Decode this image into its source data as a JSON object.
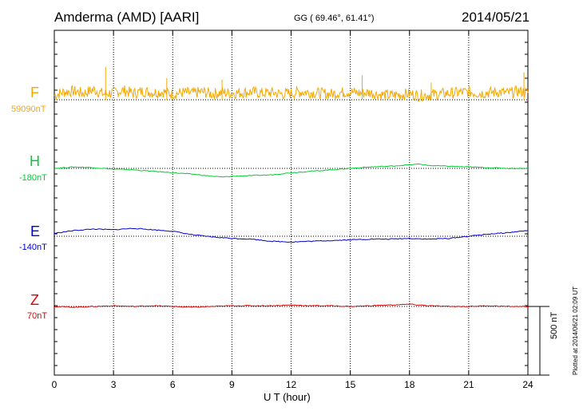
{
  "header": {
    "station": "Amderma (AMD)  [AARI]",
    "coords": "GG ( 69.46°,  61.41°)",
    "date": "2014/05/21"
  },
  "footer": {
    "plotted": "Plotted at 2014/06/21 02:09 UT"
  },
  "chart_data": {
    "type": "line",
    "xlabel": "U T (hour)",
    "xlim": [
      0,
      24
    ],
    "xticks": [
      0,
      3,
      6,
      9,
      12,
      15,
      18,
      21,
      24
    ],
    "scale_bar": "500 nT",
    "grid": true,
    "series": [
      {
        "name": "F",
        "baseline": "59090nT",
        "color": "#f5a800",
        "x": [
          0,
          0.5,
          1,
          1.5,
          2,
          2.5,
          3,
          3.5,
          4,
          4.5,
          5,
          5.5,
          6,
          6.5,
          7,
          7.5,
          8,
          8.5,
          9,
          9.5,
          10,
          10.5,
          11,
          11.5,
          12,
          12.5,
          13,
          13.5,
          14,
          14.5,
          15,
          15.5,
          16,
          16.5,
          17,
          17.5,
          18,
          18.5,
          19,
          19.5,
          20,
          20.5,
          21,
          21.5,
          22,
          22.5,
          23,
          23.5,
          24
        ],
        "values": [
          30,
          55,
          60,
          45,
          70,
          40,
          50,
          65,
          45,
          60,
          50,
          55,
          40,
          50,
          45,
          55,
          40,
          50,
          45,
          50,
          55,
          45,
          50,
          40,
          45,
          55,
          50,
          45,
          40,
          50,
          55,
          45,
          50,
          35,
          30,
          35,
          40,
          30,
          35,
          40,
          45,
          50,
          55,
          45,
          50,
          55,
          45,
          60,
          50
        ],
        "spikes": [
          [
            2.6,
            230
          ],
          [
            5.7,
            150
          ],
          [
            8.5,
            140
          ],
          [
            15.6,
            170
          ],
          [
            19.1,
            120
          ],
          [
            23.8,
            190
          ]
        ]
      },
      {
        "name": "H",
        "baseline": "-180nT",
        "color": "#00cc33",
        "x": [
          0,
          1,
          2,
          3,
          4,
          5,
          6,
          7,
          8,
          8.5,
          9,
          10,
          11,
          12,
          13,
          14,
          15,
          16,
          17,
          18,
          18.5,
          19,
          20,
          21,
          22,
          23,
          24
        ],
        "values": [
          0,
          10,
          5,
          -5,
          -10,
          -20,
          -30,
          -40,
          -55,
          -60,
          -55,
          -50,
          -45,
          -30,
          -20,
          -10,
          0,
          10,
          15,
          25,
          30,
          20,
          15,
          10,
          5,
          0,
          0
        ]
      },
      {
        "name": "E",
        "baseline": "-140nT",
        "color": "#0000cc",
        "x": [
          0,
          1,
          2,
          3,
          4,
          5,
          6,
          7,
          8,
          9,
          10,
          11,
          12,
          13,
          14,
          15,
          16,
          17,
          18,
          19,
          20,
          21,
          22,
          23,
          24
        ],
        "values": [
          20,
          40,
          50,
          45,
          55,
          45,
          35,
          10,
          -5,
          -15,
          -20,
          -35,
          -40,
          -35,
          -30,
          -25,
          -20,
          -20,
          -15,
          -20,
          -15,
          0,
          15,
          25,
          40
        ]
      },
      {
        "name": "Z",
        "baseline": "70nT",
        "color": "#e00000",
        "x": [
          0,
          1,
          2,
          3,
          4,
          5,
          6,
          7,
          8,
          9,
          10,
          11,
          12,
          13,
          14,
          15,
          16,
          17,
          18,
          19,
          20,
          21,
          22,
          23,
          24
        ],
        "values": [
          0,
          -5,
          0,
          5,
          0,
          5,
          0,
          -5,
          0,
          5,
          5,
          5,
          10,
          5,
          5,
          0,
          5,
          10,
          15,
          5,
          0,
          0,
          5,
          0,
          0
        ]
      }
    ]
  }
}
